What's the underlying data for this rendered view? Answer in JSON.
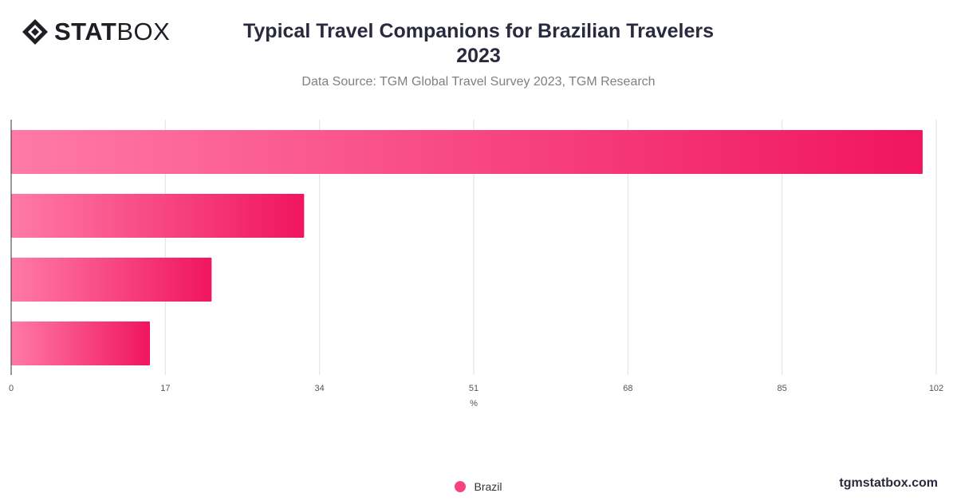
{
  "brand": {
    "logo_bold": "STAT",
    "logo_light": "BOX",
    "logo_icon": "diamond-logo-icon",
    "footer": "tgmstatbox.com"
  },
  "colors": {
    "bar_start": "#ff7aa6",
    "bar_end": "#f0155f",
    "grid": "#e2e2e2",
    "axis": "#333333",
    "title": "#2a2a3e"
  },
  "chart_data": {
    "type": "bar",
    "orientation": "horizontal",
    "title_line1": "Typical Travel Companions for Brazilian Travelers",
    "title_line2": "2023",
    "subtitle": "Data Source: TGM Global Travel Survey 2023, TGM Research",
    "xlabel": "%",
    "xlim": [
      0,
      102
    ],
    "xticks": [
      0,
      17,
      34,
      51,
      68,
      85,
      102
    ],
    "grid": true,
    "legend_position": "bottom-center",
    "series": [
      {
        "name": "Brazil",
        "values": [
          100.5,
          32.3,
          22.1,
          15.3
        ]
      }
    ]
  }
}
